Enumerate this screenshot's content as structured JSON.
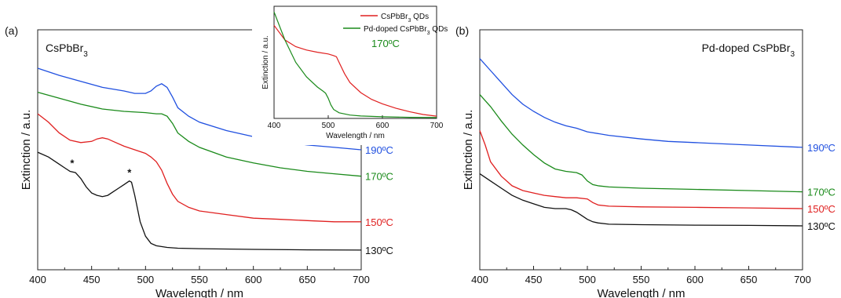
{
  "chart_data": [
    {
      "panel": "(a)",
      "type": "line",
      "title": "CsPbBr₃",
      "xlabel": "Wavelength / nm",
      "ylabel": "Extinction / a.u.",
      "xlim": [
        400,
        700
      ],
      "ylim": [
        0,
        1
      ],
      "xticks": [
        400,
        450,
        500,
        550,
        600,
        650,
        700
      ],
      "series": [
        {
          "name": "190ºC",
          "color": "#2050e0",
          "x": [
            400,
            420,
            440,
            460,
            480,
            490,
            500,
            505,
            510,
            515,
            520,
            525,
            530,
            540,
            550,
            575,
            600,
            625,
            650,
            675,
            700
          ],
          "y": [
            0.84,
            0.81,
            0.785,
            0.76,
            0.745,
            0.735,
            0.735,
            0.745,
            0.765,
            0.775,
            0.76,
            0.72,
            0.675,
            0.64,
            0.615,
            0.58,
            0.555,
            0.535,
            0.52,
            0.51,
            0.5
          ]
        },
        {
          "name": "170ºC",
          "color": "#1a8a1a",
          "x": [
            400,
            420,
            440,
            460,
            480,
            500,
            510,
            515,
            520,
            525,
            530,
            540,
            550,
            575,
            600,
            625,
            650,
            675,
            700
          ],
          "y": [
            0.74,
            0.715,
            0.69,
            0.67,
            0.66,
            0.655,
            0.65,
            0.65,
            0.64,
            0.61,
            0.57,
            0.535,
            0.51,
            0.47,
            0.445,
            0.425,
            0.41,
            0.4,
            0.39
          ]
        },
        {
          "name": "150ºC",
          "color": "#e02020",
          "x": [
            400,
            410,
            420,
            430,
            440,
            450,
            455,
            460,
            465,
            470,
            480,
            490,
            500,
            505,
            510,
            515,
            520,
            525,
            530,
            540,
            550,
            575,
            600,
            625,
            650,
            675,
            700
          ],
          "y": [
            0.65,
            0.615,
            0.57,
            0.54,
            0.53,
            0.535,
            0.545,
            0.55,
            0.545,
            0.535,
            0.515,
            0.5,
            0.485,
            0.47,
            0.45,
            0.415,
            0.36,
            0.315,
            0.285,
            0.26,
            0.245,
            0.23,
            0.215,
            0.21,
            0.205,
            0.2,
            0.2
          ]
        },
        {
          "name": "130ºC",
          "color": "#111111",
          "x": [
            400,
            410,
            420,
            425,
            430,
            435,
            440,
            445,
            450,
            455,
            460,
            465,
            470,
            475,
            480,
            485,
            487,
            490,
            495,
            500,
            505,
            510,
            520,
            530,
            550,
            600,
            650,
            700
          ],
          "y": [
            0.49,
            0.47,
            0.44,
            0.425,
            0.41,
            0.405,
            0.38,
            0.345,
            0.32,
            0.31,
            0.305,
            0.31,
            0.325,
            0.34,
            0.355,
            0.37,
            0.365,
            0.31,
            0.2,
            0.14,
            0.11,
            0.1,
            0.093,
            0.09,
            0.088,
            0.085,
            0.083,
            0.082
          ]
        }
      ],
      "annotations": [
        {
          "text": "*",
          "x": 432,
          "y": 0.43
        },
        {
          "text": "*",
          "x": 485,
          "y": 0.39
        }
      ],
      "series_label_values": [
        0.5,
        0.39,
        0.2,
        0.082
      ],
      "inset": {
        "xlabel": "Wavelength / nm",
        "ylabel": "Extinction / a.u.",
        "xlim": [
          400,
          700
        ],
        "ylim": [
          0,
          1
        ],
        "xticks": [
          400,
          500,
          600,
          700
        ],
        "annotation": "170ºC",
        "legend": "top-right",
        "series": [
          {
            "name": "CsPbBr₃ QDs",
            "color": "#e02020",
            "x": [
              400,
              420,
              440,
              460,
              480,
              500,
              510,
              515,
              520,
              530,
              540,
              560,
              580,
              600,
              625,
              650,
              675,
              700
            ],
            "y": [
              0.83,
              0.7,
              0.64,
              0.61,
              0.59,
              0.575,
              0.56,
              0.55,
              0.5,
              0.4,
              0.32,
              0.23,
              0.17,
              0.13,
              0.09,
              0.06,
              0.035,
              0.02
            ]
          },
          {
            "name": "Pd-doped CsPbBr₃ QDs",
            "color": "#1a8a1a",
            "x": [
              400,
              420,
              440,
              460,
              480,
              490,
              495,
              500,
              505,
              510,
              520,
              540,
              560,
              600,
              650,
              700
            ],
            "y": [
              0.95,
              0.7,
              0.5,
              0.37,
              0.28,
              0.245,
              0.225,
              0.18,
              0.12,
              0.08,
              0.05,
              0.03,
              0.022,
              0.015,
              0.01,
              0.008
            ]
          }
        ]
      }
    },
    {
      "panel": "(b)",
      "type": "line",
      "title": "Pd-doped CsPbBr₃",
      "xlabel": "Wavelength / nm",
      "ylabel": "Extinction / a.u.",
      "xlim": [
        400,
        700
      ],
      "ylim": [
        0,
        1
      ],
      "xticks": [
        400,
        450,
        500,
        550,
        600,
        650,
        700
      ],
      "series": [
        {
          "name": "190ºC",
          "color": "#2050e0",
          "x": [
            400,
            410,
            420,
            430,
            440,
            450,
            460,
            470,
            480,
            490,
            500,
            520,
            550,
            575,
            600,
            650,
            700
          ],
          "y": [
            0.88,
            0.83,
            0.78,
            0.73,
            0.69,
            0.66,
            0.635,
            0.615,
            0.6,
            0.59,
            0.575,
            0.56,
            0.545,
            0.535,
            0.53,
            0.52,
            0.51
          ]
        },
        {
          "name": "170ºC",
          "color": "#1a8a1a",
          "x": [
            400,
            410,
            420,
            430,
            440,
            450,
            460,
            470,
            480,
            490,
            495,
            500,
            505,
            510,
            520,
            550,
            600,
            650,
            700
          ],
          "y": [
            0.73,
            0.68,
            0.62,
            0.565,
            0.52,
            0.48,
            0.445,
            0.42,
            0.41,
            0.405,
            0.395,
            0.37,
            0.355,
            0.35,
            0.345,
            0.34,
            0.335,
            0.33,
            0.325
          ]
        },
        {
          "name": "150ºC",
          "color": "#e02020",
          "x": [
            400,
            405,
            410,
            420,
            430,
            440,
            450,
            460,
            470,
            480,
            490,
            500,
            505,
            510,
            520,
            550,
            600,
            650,
            700
          ],
          "y": [
            0.58,
            0.52,
            0.45,
            0.39,
            0.35,
            0.33,
            0.32,
            0.31,
            0.305,
            0.3,
            0.3,
            0.295,
            0.28,
            0.27,
            0.265,
            0.262,
            0.26,
            0.258,
            0.255
          ]
        },
        {
          "name": "130ºC",
          "color": "#111111",
          "x": [
            400,
            410,
            420,
            430,
            440,
            450,
            460,
            470,
            480,
            485,
            490,
            495,
            500,
            505,
            510,
            520,
            550,
            600,
            650,
            700
          ],
          "y": [
            0.4,
            0.37,
            0.34,
            0.31,
            0.29,
            0.275,
            0.26,
            0.255,
            0.255,
            0.25,
            0.24,
            0.225,
            0.21,
            0.2,
            0.195,
            0.19,
            0.188,
            0.186,
            0.185,
            0.183
          ]
        }
      ],
      "series_label_values": [
        0.51,
        0.325,
        0.255,
        0.183
      ]
    }
  ]
}
